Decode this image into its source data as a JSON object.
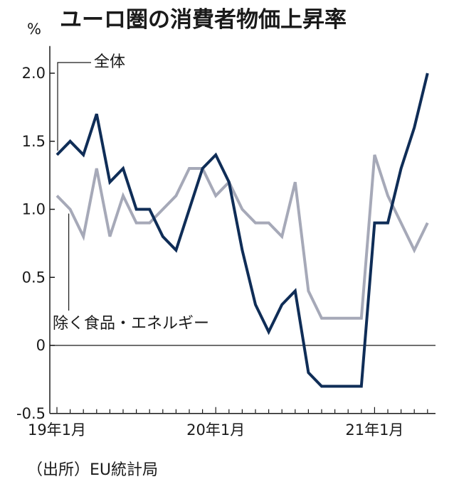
{
  "title": "ユーロ圏の消費者物価上昇率",
  "source": "（出所）EU統計局",
  "chart_data": {
    "type": "line",
    "ylabel": "%",
    "ylim": [
      -0.5,
      2.2
    ],
    "yticks": [
      "2.0",
      "1.5",
      "1.0",
      "0.5",
      "0",
      "-0.5"
    ],
    "ytick_values": [
      2.0,
      1.5,
      1.0,
      0.5,
      0,
      -0.5
    ],
    "xticks": [
      "19年1月",
      "20年1月",
      "21年1月"
    ],
    "xtick_months": [
      0,
      12,
      24
    ],
    "grid": false,
    "series": [
      {
        "name": "全体",
        "color": "#0f2d57",
        "months": [
          0,
          1,
          2,
          3,
          4,
          5,
          6,
          7,
          8,
          9,
          10,
          11,
          12,
          13,
          14,
          15,
          16,
          17,
          18,
          19,
          20,
          21,
          22,
          23,
          24,
          25,
          26,
          27,
          28
        ],
        "values": [
          1.4,
          1.5,
          1.4,
          1.7,
          1.2,
          1.3,
          1.0,
          1.0,
          0.8,
          0.7,
          1.0,
          1.3,
          1.4,
          1.2,
          0.7,
          0.3,
          0.1,
          0.3,
          0.4,
          -0.2,
          -0.3,
          -0.3,
          -0.3,
          -0.3,
          0.9,
          0.9,
          1.3,
          1.6,
          2.0
        ]
      },
      {
        "name": "除く食品・エネルギー",
        "color": "#a6a9b8",
        "months": [
          0,
          1,
          2,
          3,
          4,
          5,
          6,
          7,
          8,
          9,
          10,
          11,
          12,
          13,
          14,
          15,
          16,
          17,
          18,
          19,
          20,
          21,
          22,
          23,
          24,
          25,
          26,
          27,
          28
        ],
        "values": [
          1.1,
          1.0,
          0.8,
          1.3,
          0.8,
          1.1,
          0.9,
          0.9,
          1.0,
          1.1,
          1.3,
          1.3,
          1.1,
          1.2,
          1.0,
          0.9,
          0.9,
          0.8,
          1.2,
          0.4,
          0.2,
          0.2,
          0.2,
          0.2,
          1.4,
          1.1,
          0.9,
          0.7,
          0.9
        ]
      }
    ]
  }
}
